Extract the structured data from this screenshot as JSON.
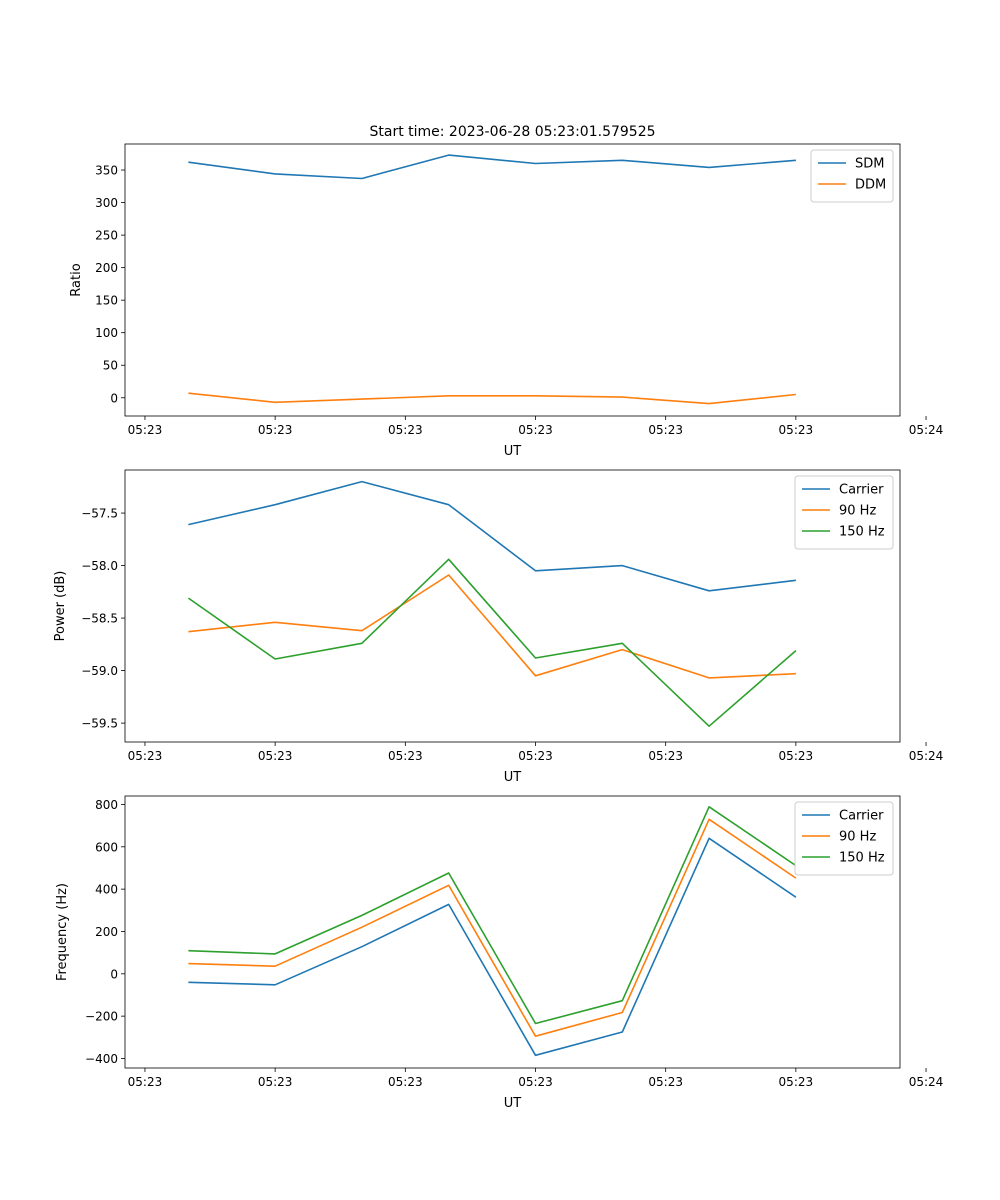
{
  "figure": {
    "title": "Start time: 2023-06-28 05:23:01.579525"
  },
  "colors": {
    "blue": "#1f77b4",
    "orange": "#ff7f0e",
    "green": "#2ca02c"
  },
  "chart_data": [
    {
      "type": "line",
      "title": "Start time: 2023-06-28 05:23:01.579525",
      "xlabel": "UT",
      "ylabel": "Ratio",
      "x": [
        1,
        2,
        3,
        4,
        5,
        6,
        7,
        8
      ],
      "xlim": [
        0.27,
        9.2
      ],
      "xticks": [
        0.5,
        2,
        3.5,
        5,
        6.5,
        8,
        9.5
      ],
      "xtick_labels": [
        "05:23",
        "05:23",
        "05:23",
        "05:23",
        "05:23",
        "05:23",
        "05:24"
      ],
      "ylim": [
        -28,
        390
      ],
      "yticks": [
        0,
        50,
        100,
        150,
        200,
        250,
        300,
        350
      ],
      "ytick_labels": [
        "0",
        "50",
        "100",
        "150",
        "200",
        "250",
        "300",
        "350"
      ],
      "series": [
        {
          "name": "SDM",
          "color": "#1f77b4",
          "values": [
            362,
            344,
            337,
            373,
            360,
            365,
            354,
            365
          ]
        },
        {
          "name": "DDM",
          "color": "#ff7f0e",
          "values": [
            7,
            -7,
            -2,
            3,
            3,
            1,
            -9,
            5
          ]
        }
      ],
      "legend": "top-right",
      "grid": false
    },
    {
      "type": "line",
      "title": "",
      "xlabel": "UT",
      "ylabel": "Power (dB)",
      "x": [
        1,
        2,
        3,
        4,
        5,
        6,
        7,
        8
      ],
      "xlim": [
        0.27,
        9.2
      ],
      "xticks": [
        0.5,
        2,
        3.5,
        5,
        6.5,
        8,
        9.5
      ],
      "xtick_labels": [
        "05:23",
        "05:23",
        "05:23",
        "05:23",
        "05:23",
        "05:23",
        "05:24"
      ],
      "ylim": [
        -59.68,
        -57.09
      ],
      "yticks": [
        -57.5,
        -58.0,
        -58.5,
        -59.0,
        -59.5
      ],
      "ytick_labels": [
        "−57.5",
        "−58.0",
        "−58.5",
        "−59.0",
        "−59.5"
      ],
      "series": [
        {
          "name": "Carrier",
          "color": "#1f77b4",
          "values": [
            -57.61,
            -57.42,
            -57.2,
            -57.42,
            -58.05,
            -58.0,
            -58.24,
            -58.14
          ]
        },
        {
          "name": "90 Hz",
          "color": "#ff7f0e",
          "values": [
            -58.63,
            -58.54,
            -58.62,
            -58.09,
            -59.05,
            -58.8,
            -59.07,
            -59.03
          ]
        },
        {
          "name": "150 Hz",
          "color": "#2ca02c",
          "values": [
            -58.31,
            -58.89,
            -58.74,
            -57.94,
            -58.88,
            -58.74,
            -59.53,
            -58.81
          ]
        }
      ],
      "legend": "top-right",
      "grid": false
    },
    {
      "type": "line",
      "title": "",
      "xlabel": "UT",
      "ylabel": "Frequency (Hz)",
      "x": [
        1,
        2,
        3,
        4,
        5,
        6,
        7,
        8
      ],
      "xlim": [
        0.27,
        9.2
      ],
      "xticks": [
        0.5,
        2,
        3.5,
        5,
        6.5,
        8,
        9.5
      ],
      "xtick_labels": [
        "05:23",
        "05:23",
        "05:23",
        "05:23",
        "05:23",
        "05:23",
        "05:24"
      ],
      "ylim": [
        -445,
        840
      ],
      "yticks": [
        800,
        600,
        400,
        200,
        0,
        -200,
        -400
      ],
      "ytick_labels": [
        "800",
        "600",
        "400",
        "200",
        "0",
        "−200",
        "−400"
      ],
      "series": [
        {
          "name": "Carrier",
          "color": "#1f77b4",
          "values": [
            -40,
            -52,
            128,
            328,
            -385,
            -275,
            640,
            362
          ]
        },
        {
          "name": "90 Hz",
          "color": "#ff7f0e",
          "values": [
            48,
            36,
            220,
            418,
            -295,
            -183,
            730,
            452
          ]
        },
        {
          "name": "150 Hz",
          "color": "#2ca02c",
          "values": [
            109,
            94,
            276,
            476,
            -235,
            -127,
            789,
            511
          ]
        }
      ],
      "legend": "top-right",
      "grid": false
    }
  ]
}
